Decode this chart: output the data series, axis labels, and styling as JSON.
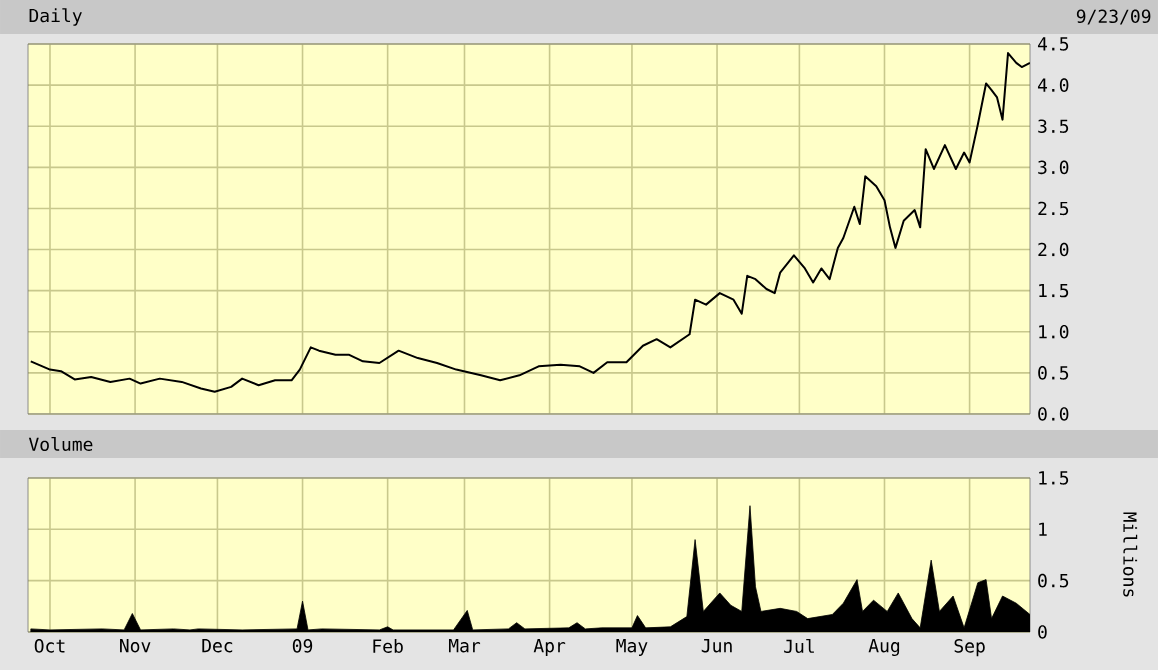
{
  "chart_data": [
    {
      "type": "line",
      "title": "Daily",
      "annotations": [
        "9/23/09"
      ],
      "color": "#000000",
      "x": [
        "2008-09-24",
        "2008-10-01",
        "2008-10-05",
        "2008-10-10",
        "2008-10-16",
        "2008-10-23",
        "2008-10-30",
        "2008-11-03",
        "2008-11-10",
        "2008-11-18",
        "2008-11-25",
        "2008-11-30",
        "2008-12-06",
        "2008-12-10",
        "2008-12-16",
        "2008-12-22",
        "2008-12-28",
        "2008-12-31",
        "2009-01-04",
        "2009-01-07",
        "2009-01-13",
        "2009-01-18",
        "2009-01-23",
        "2009-01-29",
        "2009-02-05",
        "2009-02-12",
        "2009-02-19",
        "2009-02-26",
        "2009-03-07",
        "2009-03-14",
        "2009-03-21",
        "2009-03-28",
        "2009-04-05",
        "2009-04-12",
        "2009-04-17",
        "2009-04-22",
        "2009-04-29",
        "2009-05-05",
        "2009-05-10",
        "2009-05-15",
        "2009-05-22",
        "2009-05-24",
        "2009-05-28",
        "2009-06-02",
        "2009-06-07",
        "2009-06-10",
        "2009-06-12",
        "2009-06-15",
        "2009-06-19",
        "2009-06-22",
        "2009-06-24",
        "2009-06-29",
        "2009-07-03",
        "2009-07-06",
        "2009-07-09",
        "2009-07-12",
        "2009-07-15",
        "2009-07-17",
        "2009-07-21",
        "2009-07-23",
        "2009-07-25",
        "2009-07-29",
        "2009-08-01",
        "2009-08-03",
        "2009-08-05",
        "2009-08-08",
        "2009-08-12",
        "2009-08-14",
        "2009-08-16",
        "2009-08-19",
        "2009-08-23",
        "2009-08-27",
        "2009-08-30",
        "2009-09-01",
        "2009-09-04",
        "2009-09-07",
        "2009-09-09",
        "2009-09-11",
        "2009-09-13",
        "2009-09-15",
        "2009-09-18",
        "2009-09-20",
        "2009-09-23"
      ],
      "values": [
        0.64,
        0.54,
        0.52,
        0.42,
        0.45,
        0.39,
        0.43,
        0.37,
        0.43,
        0.39,
        0.31,
        0.27,
        0.33,
        0.43,
        0.35,
        0.41,
        0.41,
        0.54,
        0.81,
        0.77,
        0.72,
        0.72,
        0.64,
        0.62,
        0.77,
        0.68,
        0.62,
        0.54,
        0.47,
        0.41,
        0.47,
        0.58,
        0.6,
        0.58,
        0.5,
        0.63,
        0.63,
        0.83,
        0.91,
        0.81,
        0.97,
        1.39,
        1.33,
        1.47,
        1.39,
        1.22,
        1.68,
        1.64,
        1.52,
        1.47,
        1.72,
        1.93,
        1.77,
        1.6,
        1.77,
        1.64,
        2.02,
        2.14,
        2.52,
        2.31,
        2.89,
        2.77,
        2.6,
        2.27,
        2.02,
        2.35,
        2.48,
        2.27,
        3.22,
        2.98,
        3.27,
        2.98,
        3.18,
        3.06,
        3.52,
        4.02,
        3.94,
        3.85,
        3.58,
        4.39,
        4.27,
        4.22,
        4.27
      ],
      "xlim": [
        "2008-09-23",
        "2009-09-23"
      ],
      "xticks": [
        {
          "value": "2008-10-01",
          "label": null
        },
        {
          "value": "2008-11-01",
          "label": null
        },
        {
          "value": "2008-12-01",
          "label": null
        },
        {
          "value": "2009-01-01",
          "label": null
        },
        {
          "value": "2009-02-01",
          "label": null
        },
        {
          "value": "2009-03-01",
          "label": null
        },
        {
          "value": "2009-04-01",
          "label": null
        },
        {
          "value": "2009-05-01",
          "label": null
        },
        {
          "value": "2009-06-01",
          "label": null
        },
        {
          "value": "2009-07-01",
          "label": null
        },
        {
          "value": "2009-08-01",
          "label": null
        },
        {
          "value": "2009-09-01",
          "label": null
        }
      ],
      "ylim": [
        0,
        4.5
      ],
      "yticks": [
        {
          "value": 0,
          "label": "0.0"
        },
        0.5,
        {
          "value": 1,
          "label": "1.0"
        },
        1.5,
        {
          "value": 2,
          "label": "2.0"
        },
        2.5,
        {
          "value": 3,
          "label": "3.0"
        },
        3.5,
        {
          "value": 4,
          "label": "4.0"
        },
        4.5
      ],
      "grid": true,
      "tick_labels": "y"
    },
    {
      "type": "area",
      "title": "Volume",
      "ylabel": "Millions",
      "color": "#000000",
      "x": [
        "2008-09-24",
        "2008-10-01",
        "2008-10-20",
        "2008-10-28",
        "2008-10-31",
        "2008-11-03",
        "2008-11-15",
        "2008-11-21",
        "2008-11-24",
        "2008-12-10",
        "2008-12-30",
        "2009-01-01",
        "2009-01-03",
        "2009-01-08",
        "2009-01-29",
        "2009-02-01",
        "2009-02-03",
        "2009-02-25",
        "2009-03-02",
        "2009-03-04",
        "2009-03-17",
        "2009-03-20",
        "2009-03-23",
        "2009-04-08",
        "2009-04-11",
        "2009-04-14",
        "2009-04-20",
        "2009-05-01",
        "2009-05-03",
        "2009-05-06",
        "2009-05-15",
        "2009-05-21",
        "2009-05-24",
        "2009-05-27",
        "2009-06-02",
        "2009-06-06",
        "2009-06-10",
        "2009-06-13",
        "2009-06-15",
        "2009-06-17",
        "2009-06-24",
        "2009-06-30",
        "2009-07-04",
        "2009-07-13",
        "2009-07-17",
        "2009-07-22",
        "2009-07-24",
        "2009-07-28",
        "2009-08-02",
        "2009-08-06",
        "2009-08-11",
        "2009-08-14",
        "2009-08-18",
        "2009-08-21",
        "2009-08-26",
        "2009-08-30",
        "2009-09-04",
        "2009-09-07",
        "2009-09-09",
        "2009-09-13",
        "2009-09-18",
        "2009-09-23"
      ],
      "values": [
        0.03,
        0.02,
        0.03,
        0.02,
        0.18,
        0.02,
        0.03,
        0.02,
        0.03,
        0.02,
        0.03,
        0.3,
        0.02,
        0.03,
        0.02,
        0.05,
        0.02,
        0.02,
        0.21,
        0.02,
        0.03,
        0.09,
        0.03,
        0.04,
        0.09,
        0.03,
        0.04,
        0.04,
        0.16,
        0.04,
        0.05,
        0.15,
        0.9,
        0.2,
        0.38,
        0.26,
        0.2,
        1.23,
        0.44,
        0.2,
        0.23,
        0.2,
        0.13,
        0.17,
        0.28,
        0.51,
        0.2,
        0.31,
        0.2,
        0.38,
        0.13,
        0.04,
        0.7,
        0.2,
        0.35,
        0.04,
        0.48,
        0.51,
        0.13,
        0.35,
        0.28,
        0.17
      ],
      "xlim": [
        "2008-09-23",
        "2009-09-23"
      ],
      "xticks": [
        {
          "value": "2008-10-01",
          "label": "Oct"
        },
        {
          "value": "2008-11-01",
          "label": "Nov"
        },
        {
          "value": "2008-12-01",
          "label": "Dec"
        },
        {
          "value": "2009-01-01",
          "label": "09"
        },
        {
          "value": "2009-02-01",
          "label": "Feb"
        },
        {
          "value": "2009-03-01",
          "label": "Mar"
        },
        {
          "value": "2009-04-01",
          "label": "Apr"
        },
        {
          "value": "2009-05-01",
          "label": "May"
        },
        {
          "value": "2009-06-01",
          "label": "Jun"
        },
        {
          "value": "2009-07-01",
          "label": "Jul"
        },
        {
          "value": "2009-08-01",
          "label": "Aug"
        },
        {
          "value": "2009-09-01",
          "label": "Sep"
        }
      ],
      "ylim": [
        0,
        1.5
      ],
      "yticks": [
        0,
        0.5,
        1,
        1.5
      ],
      "grid": true
    }
  ]
}
